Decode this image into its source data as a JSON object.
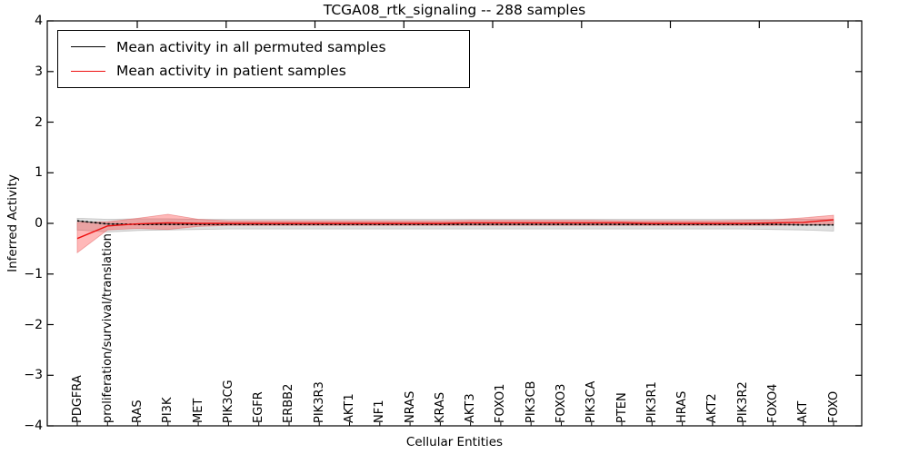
{
  "figure": {
    "title": "TCGA08_rtk_signaling -- 288 samples",
    "xlabel": "Cellular Entities",
    "ylabel": "Inferred Activity"
  },
  "colors": {
    "permuted_line": "#000000",
    "patient_line": "#ee1010",
    "permuted_band": "#999999",
    "patient_band": "#ff2222",
    "axis": "#000000",
    "background": "#ffffff"
  },
  "chart_data": {
    "type": "line",
    "title": "TCGA08_rtk_signaling -- 288 samples",
    "xlabel": "Cellular Entities",
    "ylabel": "Inferred Activity",
    "ylim": [
      -4,
      4
    ],
    "ytick_values": [
      4,
      3,
      2,
      1,
      0,
      -1,
      -2,
      -3,
      -4
    ],
    "ytick_labels": [
      "4",
      "3",
      "2",
      "1",
      "0",
      "−1",
      "−2",
      "−3",
      "−4"
    ],
    "grid": false,
    "legend_position": "upper left",
    "categories": [
      "PDGFRA",
      "proliferation/survival/translation",
      "RAS",
      "PI3K",
      "MET",
      "PIK3CG",
      "EGFR",
      "ERBB2",
      "PIK3R3",
      "AKT1",
      "NF1",
      "NRAS",
      "KRAS",
      "AKT3",
      "FOXO1",
      "PIK3CB",
      "FOXO3",
      "PIK3CA",
      "PTEN",
      "PIK3R1",
      "HRAS",
      "AKT2",
      "PIK3R2",
      "FOXO4",
      "AKT",
      "FOXO"
    ],
    "series": [
      {
        "name": "Mean activity in all permuted samples",
        "color": "#000000",
        "values": [
          0.05,
          -0.01,
          -0.02,
          -0.02,
          -0.02,
          -0.02,
          -0.02,
          -0.02,
          -0.02,
          -0.02,
          -0.02,
          -0.02,
          -0.02,
          -0.02,
          -0.02,
          -0.02,
          -0.02,
          -0.02,
          -0.02,
          -0.02,
          -0.02,
          -0.02,
          -0.02,
          -0.02,
          -0.03,
          -0.03
        ],
        "band_upper": [
          0.1,
          0.08,
          0.09,
          0.09,
          0.08,
          0.08,
          0.08,
          0.08,
          0.08,
          0.08,
          0.08,
          0.08,
          0.08,
          0.08,
          0.08,
          0.08,
          0.08,
          0.08,
          0.08,
          0.08,
          0.08,
          0.08,
          0.08,
          0.08,
          0.08,
          0.08
        ],
        "band_lower": [
          -0.13,
          -0.17,
          -0.14,
          -0.13,
          -0.12,
          -0.11,
          -0.11,
          -0.11,
          -0.11,
          -0.11,
          -0.11,
          -0.11,
          -0.11,
          -0.11,
          -0.11,
          -0.11,
          -0.11,
          -0.11,
          -0.11,
          -0.11,
          -0.11,
          -0.11,
          -0.11,
          -0.12,
          -0.13,
          -0.15
        ]
      },
      {
        "name": "Mean activity in patient samples",
        "color": "#ee1010",
        "values": [
          -0.3,
          -0.05,
          -0.01,
          0.01,
          0.0,
          0.0,
          0.0,
          0.0,
          0.0,
          0.0,
          0.0,
          0.0,
          0.0,
          0.01,
          0.01,
          0.01,
          0.01,
          0.01,
          0.01,
          0.0,
          0.0,
          0.0,
          0.0,
          0.01,
          0.02,
          0.07
        ],
        "band_upper": [
          0.02,
          0.03,
          0.1,
          0.18,
          0.08,
          0.05,
          0.05,
          0.05,
          0.05,
          0.05,
          0.05,
          0.05,
          0.05,
          0.06,
          0.06,
          0.06,
          0.06,
          0.06,
          0.05,
          0.05,
          0.05,
          0.05,
          0.06,
          0.07,
          0.11,
          0.16
        ],
        "band_lower": [
          -0.58,
          -0.13,
          -0.1,
          -0.12,
          -0.06,
          -0.04,
          -0.04,
          -0.04,
          -0.04,
          -0.04,
          -0.04,
          -0.04,
          -0.04,
          -0.04,
          -0.04,
          -0.04,
          -0.04,
          -0.04,
          -0.04,
          -0.04,
          -0.04,
          -0.04,
          -0.04,
          -0.04,
          -0.03,
          -0.02
        ]
      }
    ]
  }
}
